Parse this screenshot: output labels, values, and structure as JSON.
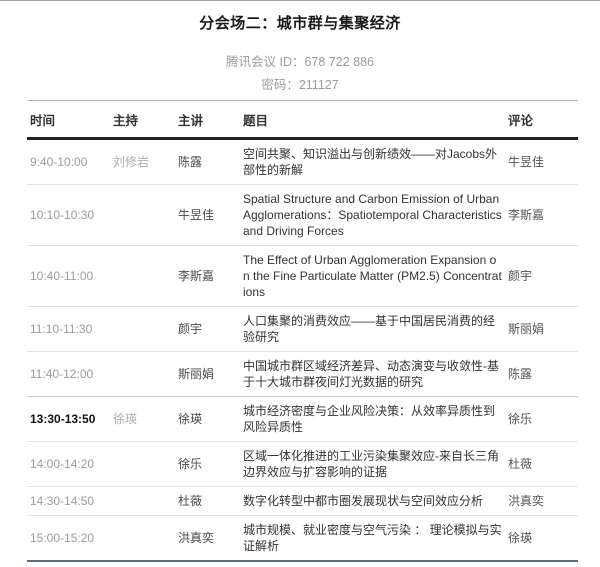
{
  "page": {
    "title": "分会场二：城市群与集聚经济"
  },
  "meeting": {
    "id_line": "腾讯会议 ID：678 722 886",
    "password_line": "密码：211127"
  },
  "colors": {
    "header_border": "#222222",
    "row_separator": "#e3e3e3",
    "table_bottom_border": "#5c6f80",
    "muted_text": "#9c9c9c"
  },
  "table": {
    "headers": {
      "time": "时间",
      "host": "主持",
      "speaker": "主讲",
      "title": "题目",
      "commentator": "评论"
    },
    "rows": [
      {
        "time": "9:40-10:00",
        "host": "刘修岩",
        "speaker": "陈露",
        "title": "空间共聚、知识溢出与创新绩效——对Jacobs外部性的新解",
        "commentator": "牛昱佳",
        "highlight": false
      },
      {
        "time": "10:10-10:30",
        "host": "",
        "speaker": "牛昱佳",
        "title": "Spatial Structure and Carbon Emission of Urban Agglomerations：Spatiotemporal Characteristics and Driving Forces",
        "commentator": "李斯嘉",
        "highlight": false
      },
      {
        "time": "10:40-11:00",
        "host": "",
        "speaker": "李斯嘉",
        "title": "The Effect of Urban Agglomeration Expansion on the Fine Particulate Matter (PM2.5) Concentrations",
        "commentator": "颜宇",
        "highlight": false
      },
      {
        "time": "11:10-11:30",
        "host": "",
        "speaker": "颜宇",
        "title": "人口集聚的消费效应——基于中国居民消费的经验研究",
        "commentator": "斯丽娟",
        "highlight": false
      },
      {
        "time": "11:40-12:00",
        "host": "",
        "speaker": "斯丽娟",
        "title": "中国城市群区域经济差异、动态演变与收敛性-基于十大城市群夜间灯光数据的研究",
        "commentator": "陈露",
        "highlight": false
      },
      {
        "time": "13:30-13:50",
        "host": "徐瑛",
        "speaker": "徐瑛",
        "title": "城市经济密度与企业风险决策：从效率异质性到风险异质性",
        "commentator": "徐乐",
        "highlight": true
      },
      {
        "time": "14:00-14:20",
        "host": "",
        "speaker": "徐乐",
        "title": "区域一体化推进的工业污染集聚效应-来自长三角边界效应与扩容影响的证据",
        "commentator": "杜薇",
        "highlight": false
      },
      {
        "time": "14:30-14:50",
        "host": "",
        "speaker": "杜薇",
        "title": "数字化转型中都市圈发展现状与空间效应分析",
        "commentator": "洪真奕",
        "highlight": false
      },
      {
        "time": "15:00-15:20",
        "host": "",
        "speaker": "洪真奕",
        "title": "城市规模、就业密度与空气污染 ： 理论模拟与实证解析",
        "commentator": "徐瑛",
        "highlight": false
      }
    ]
  }
}
